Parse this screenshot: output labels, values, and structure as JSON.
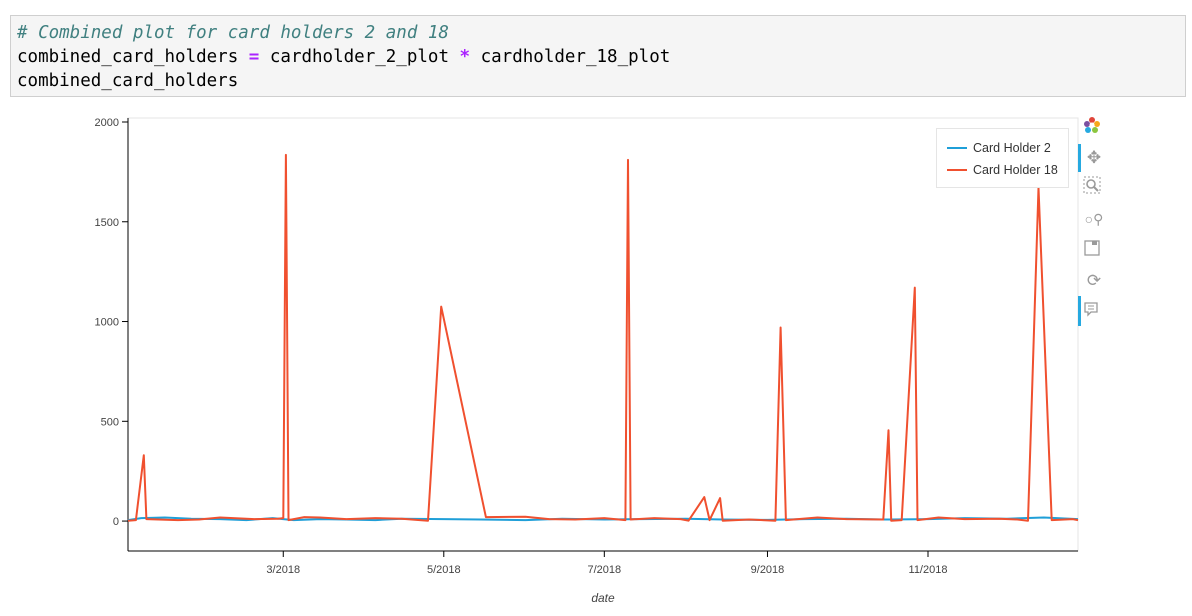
{
  "code": {
    "comment": "# Combined plot for card holders 2 and 18",
    "line2_a": "combined_card_holders ",
    "line2_op1": "=",
    "line2_b": " cardholder_2_plot ",
    "line2_op2": "*",
    "line2_c": " cardholder_18_plot",
    "line3": "combined_card_holders"
  },
  "toolbar": {
    "logo_icon": "bokeh-logo-icon",
    "pan_icon": "pan-icon",
    "box_zoom_icon": "box-zoom-icon",
    "wheel_zoom_icon": "wheel-zoom-icon",
    "save_icon": "save-icon",
    "reset_icon": "reset-icon",
    "hover_icon": "hover-icon"
  },
  "chart_data": {
    "type": "line",
    "xlabel": "date",
    "ylabel": "",
    "xlim": [
      "2018-01-01",
      "2018-12-28"
    ],
    "ylim": [
      -150,
      2020
    ],
    "yticks": [
      0,
      500,
      1000,
      1500,
      2000
    ],
    "xticks": [
      {
        "date": "2018-03-01",
        "label": "3/2018"
      },
      {
        "date": "2018-05-01",
        "label": "5/2018"
      },
      {
        "date": "2018-07-01",
        "label": "7/2018"
      },
      {
        "date": "2018-09-01",
        "label": "9/2018"
      },
      {
        "date": "2018-11-01",
        "label": "11/2018"
      }
    ],
    "legend_position": "top-right",
    "grid": false,
    "series": [
      {
        "name": "Card Holder 2",
        "color": "#1f9fd8",
        "points": [
          [
            "2018-01-01",
            5
          ],
          [
            "2018-01-06",
            15
          ],
          [
            "2018-01-15",
            18
          ],
          [
            "2018-01-25",
            12
          ],
          [
            "2018-02-05",
            10
          ],
          [
            "2018-02-15",
            5
          ],
          [
            "2018-02-25",
            15
          ],
          [
            "2018-03-05",
            5
          ],
          [
            "2018-03-15",
            10
          ],
          [
            "2018-03-25",
            8
          ],
          [
            "2018-04-05",
            5
          ],
          [
            "2018-04-15",
            12
          ],
          [
            "2018-05-01",
            10
          ],
          [
            "2018-05-15",
            8
          ],
          [
            "2018-06-01",
            5
          ],
          [
            "2018-06-15",
            12
          ],
          [
            "2018-07-01",
            8
          ],
          [
            "2018-07-15",
            10
          ],
          [
            "2018-08-01",
            12
          ],
          [
            "2018-08-15",
            8
          ],
          [
            "2018-09-01",
            6
          ],
          [
            "2018-09-15",
            10
          ],
          [
            "2018-10-01",
            12
          ],
          [
            "2018-10-15",
            8
          ],
          [
            "2018-11-01",
            10
          ],
          [
            "2018-11-15",
            15
          ],
          [
            "2018-12-01",
            12
          ],
          [
            "2018-12-15",
            18
          ],
          [
            "2018-12-28",
            10
          ]
        ]
      },
      {
        "name": "Card Holder 18",
        "color": "#f0502f",
        "points": [
          [
            "2018-01-01",
            2
          ],
          [
            "2018-01-04",
            5
          ],
          [
            "2018-01-07",
            330
          ],
          [
            "2018-01-08",
            10
          ],
          [
            "2018-01-20",
            5
          ],
          [
            "2018-01-28",
            8
          ],
          [
            "2018-02-05",
            18
          ],
          [
            "2018-02-18",
            10
          ],
          [
            "2018-02-27",
            12
          ],
          [
            "2018-03-01",
            15
          ],
          [
            "2018-03-02",
            1835
          ],
          [
            "2018-03-03",
            5
          ],
          [
            "2018-03-09",
            20
          ],
          [
            "2018-03-15",
            18
          ],
          [
            "2018-03-25",
            10
          ],
          [
            "2018-04-05",
            15
          ],
          [
            "2018-04-15",
            12
          ],
          [
            "2018-04-25",
            2
          ],
          [
            "2018-04-30",
            1075
          ],
          [
            "2018-05-17",
            20
          ],
          [
            "2018-06-01",
            22
          ],
          [
            "2018-06-10",
            10
          ],
          [
            "2018-06-20",
            8
          ],
          [
            "2018-07-01",
            15
          ],
          [
            "2018-07-09",
            5
          ],
          [
            "2018-07-10",
            1810
          ],
          [
            "2018-07-11",
            8
          ],
          [
            "2018-07-20",
            15
          ],
          [
            "2018-07-30",
            10
          ],
          [
            "2018-08-02",
            2
          ],
          [
            "2018-08-08",
            120
          ],
          [
            "2018-08-10",
            5
          ],
          [
            "2018-08-14",
            115
          ],
          [
            "2018-08-15",
            2
          ],
          [
            "2018-08-25",
            8
          ],
          [
            "2018-09-04",
            2
          ],
          [
            "2018-09-06",
            970
          ],
          [
            "2018-09-08",
            5
          ],
          [
            "2018-09-20",
            18
          ],
          [
            "2018-10-01",
            10
          ],
          [
            "2018-10-15",
            8
          ],
          [
            "2018-10-17",
            455
          ],
          [
            "2018-10-18",
            2
          ],
          [
            "2018-10-22",
            5
          ],
          [
            "2018-10-27",
            1170
          ],
          [
            "2018-10-28",
            5
          ],
          [
            "2018-11-05",
            18
          ],
          [
            "2018-11-15",
            10
          ],
          [
            "2018-11-28",
            12
          ],
          [
            "2018-12-05",
            8
          ],
          [
            "2018-12-09",
            2
          ],
          [
            "2018-12-13",
            1670
          ],
          [
            "2018-12-18",
            5
          ],
          [
            "2018-12-26",
            10
          ],
          [
            "2018-12-28",
            5
          ]
        ]
      }
    ]
  }
}
